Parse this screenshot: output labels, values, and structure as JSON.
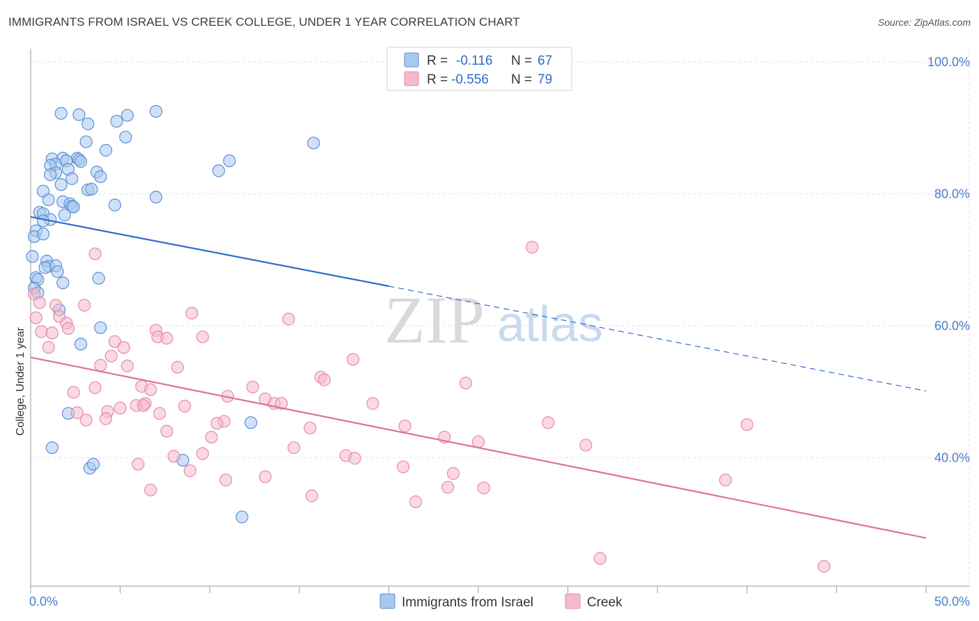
{
  "title": "IMMIGRANTS FROM ISRAEL VS CREEK COLLEGE, UNDER 1 YEAR CORRELATION CHART",
  "source": "Source: ZipAtlas.com",
  "watermark": {
    "zip": "ZIP",
    "atlas": "atlas"
  },
  "colors": {
    "blue_fill": "#a9c8f0",
    "blue_stroke": "#5b8fd6",
    "blue_line": "#2f6ccb",
    "pink_fill": "#f6b9cc",
    "pink_stroke": "#e889a8",
    "pink_line": "#e07098",
    "grid": "#e3e3e3",
    "axis_text": "#4a7cc9"
  },
  "legend": {
    "rows": [
      {
        "r_label": "R =",
        "r_value": "-0.116",
        "n_label": "N =",
        "n_value": "67"
      },
      {
        "r_label": "R =",
        "r_value": "-0.556",
        "n_label": "N =",
        "n_value": "79"
      }
    ]
  },
  "chart_data": {
    "type": "scatter",
    "title": "IMMIGRANTS FROM ISRAEL VS CREEK COLLEGE, UNDER 1 YEAR CORRELATION CHART",
    "xlabel": "",
    "ylabel": "College, Under 1 year",
    "xlim": [
      0,
      50
    ],
    "ylim": [
      20.5,
      102
    ],
    "x_tick_labels": [
      "0.0%",
      "50.0%"
    ],
    "y_ticks": [
      40,
      60,
      80,
      100
    ],
    "y_tick_labels": [
      "40.0%",
      "60.0%",
      "80.0%",
      "100.0%"
    ],
    "grid": true,
    "legend_position": "top-center",
    "series": [
      {
        "name": "Immigrants from Israel",
        "color": "#a9c8f0",
        "points": [
          [
            1.7,
            92.2
          ],
          [
            2.7,
            92.0
          ],
          [
            3.2,
            90.6
          ],
          [
            4.8,
            91.0
          ],
          [
            5.4,
            91.9
          ],
          [
            7.0,
            92.5
          ],
          [
            3.1,
            87.9
          ],
          [
            4.2,
            86.6
          ],
          [
            5.3,
            88.6
          ],
          [
            15.8,
            87.7
          ],
          [
            1.2,
            85.3
          ],
          [
            1.8,
            85.4
          ],
          [
            2.6,
            85.4
          ],
          [
            2.7,
            85.2
          ],
          [
            1.4,
            84.5
          ],
          [
            2.0,
            85.0
          ],
          [
            1.1,
            84.3
          ],
          [
            1.4,
            83.2
          ],
          [
            2.1,
            83.7
          ],
          [
            10.5,
            83.5
          ],
          [
            11.1,
            85.0
          ],
          [
            1.1,
            82.9
          ],
          [
            2.3,
            82.3
          ],
          [
            3.7,
            83.3
          ],
          [
            3.9,
            82.6
          ],
          [
            1.7,
            81.4
          ],
          [
            3.2,
            80.6
          ],
          [
            3.4,
            80.7
          ],
          [
            0.7,
            80.4
          ],
          [
            7.0,
            79.5
          ],
          [
            1.0,
            79.1
          ],
          [
            1.8,
            78.8
          ],
          [
            2.2,
            78.5
          ],
          [
            2.3,
            78.1
          ],
          [
            2.4,
            78.0
          ],
          [
            4.7,
            78.3
          ],
          [
            0.5,
            77.2
          ],
          [
            0.7,
            77.0
          ],
          [
            1.1,
            76.1
          ],
          [
            1.9,
            76.8
          ],
          [
            0.7,
            75.9
          ],
          [
            0.3,
            74.4
          ],
          [
            0.2,
            73.5
          ],
          [
            0.7,
            73.9
          ],
          [
            0.1,
            70.5
          ],
          [
            0.9,
            69.8
          ],
          [
            1.0,
            69.0
          ],
          [
            1.4,
            69.1
          ],
          [
            0.8,
            68.8
          ],
          [
            1.5,
            68.2
          ],
          [
            0.3,
            67.3
          ],
          [
            0.4,
            67.0
          ],
          [
            3.8,
            67.2
          ],
          [
            1.8,
            66.5
          ],
          [
            0.2,
            65.7
          ],
          [
            1.6,
            62.4
          ],
          [
            3.9,
            59.7
          ],
          [
            2.8,
            57.2
          ],
          [
            2.1,
            46.7
          ],
          [
            12.3,
            45.3
          ],
          [
            1.2,
            41.5
          ],
          [
            8.5,
            39.6
          ],
          [
            3.3,
            38.4
          ],
          [
            3.5,
            39.0
          ],
          [
            11.8,
            31.0
          ],
          [
            0.4,
            65.0
          ],
          [
            2.8,
            84.9
          ]
        ]
      },
      {
        "name": "Creek",
        "color": "#f6b9cc",
        "points": [
          [
            0.2,
            64.8
          ],
          [
            0.3,
            61.2
          ],
          [
            1.4,
            63.1
          ],
          [
            3.0,
            63.1
          ],
          [
            1.6,
            61.4
          ],
          [
            2.0,
            60.4
          ],
          [
            0.6,
            59.1
          ],
          [
            2.1,
            59.6
          ],
          [
            1.2,
            58.9
          ],
          [
            7.0,
            59.3
          ],
          [
            7.1,
            58.3
          ],
          [
            7.6,
            58.1
          ],
          [
            9.6,
            58.3
          ],
          [
            9.0,
            61.9
          ],
          [
            14.4,
            61.0
          ],
          [
            4.7,
            57.6
          ],
          [
            5.2,
            56.7
          ],
          [
            1.0,
            56.7
          ],
          [
            4.5,
            55.4
          ],
          [
            3.9,
            54.0
          ],
          [
            5.4,
            53.9
          ],
          [
            8.2,
            53.7
          ],
          [
            16.2,
            52.2
          ],
          [
            16.4,
            51.8
          ],
          [
            18.0,
            54.9
          ],
          [
            24.3,
            51.3
          ],
          [
            28.0,
            71.9
          ],
          [
            3.6,
            70.9
          ],
          [
            6.2,
            50.8
          ],
          [
            6.7,
            50.3
          ],
          [
            12.4,
            50.7
          ],
          [
            3.6,
            50.6
          ],
          [
            2.4,
            49.9
          ],
          [
            11.0,
            49.3
          ],
          [
            13.1,
            48.9
          ],
          [
            2.6,
            46.8
          ],
          [
            4.3,
            47.0
          ],
          [
            5.0,
            47.5
          ],
          [
            5.9,
            47.9
          ],
          [
            6.4,
            48.2
          ],
          [
            6.3,
            47.9
          ],
          [
            8.6,
            47.8
          ],
          [
            13.6,
            48.2
          ],
          [
            14.0,
            48.2
          ],
          [
            19.1,
            48.2
          ],
          [
            3.1,
            45.7
          ],
          [
            4.2,
            45.9
          ],
          [
            10.8,
            45.5
          ],
          [
            10.4,
            45.2
          ],
          [
            15.6,
            44.5
          ],
          [
            20.9,
            44.8
          ],
          [
            23.1,
            43.1
          ],
          [
            25.0,
            42.4
          ],
          [
            28.9,
            45.3
          ],
          [
            31.0,
            41.9
          ],
          [
            40.0,
            45.0
          ],
          [
            7.6,
            44.0
          ],
          [
            10.1,
            43.1
          ],
          [
            14.7,
            41.5
          ],
          [
            9.6,
            40.6
          ],
          [
            8.0,
            40.2
          ],
          [
            17.6,
            40.3
          ],
          [
            18.1,
            39.9
          ],
          [
            6.0,
            39.0
          ],
          [
            20.8,
            38.6
          ],
          [
            8.9,
            38.0
          ],
          [
            23.6,
            37.6
          ],
          [
            13.1,
            37.1
          ],
          [
            10.9,
            36.6
          ],
          [
            23.3,
            35.5
          ],
          [
            25.3,
            35.4
          ],
          [
            6.7,
            35.1
          ],
          [
            15.7,
            34.2
          ],
          [
            21.5,
            33.3
          ],
          [
            38.8,
            36.6
          ],
          [
            31.8,
            24.7
          ],
          [
            44.3,
            23.5
          ],
          [
            0.5,
            63.5
          ],
          [
            7.2,
            46.7
          ]
        ]
      }
    ],
    "trendlines": [
      {
        "series": "Immigrants from Israel",
        "x0": 0,
        "y0": 76.5,
        "x1": 20,
        "y1": 66.0,
        "dashed_x1": 50,
        "dashed_y1": 50.1
      },
      {
        "series": "Creek",
        "x0": 0,
        "y0": 55.2,
        "x1": 50,
        "y1": 27.8
      }
    ]
  }
}
